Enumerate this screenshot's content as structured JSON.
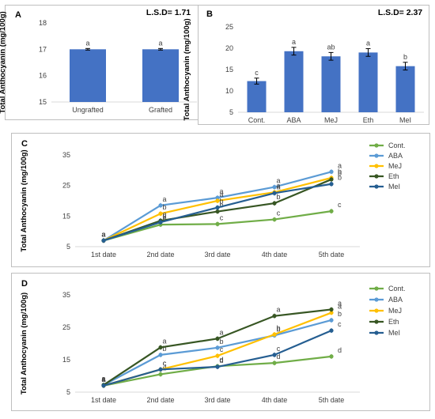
{
  "colors": {
    "bar": "#4472c4",
    "axis": "#d9d9d9",
    "text": "#404040",
    "series": {
      "Cont.": "#70ad47",
      "ABA": "#5b9bd5",
      "MeJ": "#ffc000",
      "Eth": "#375623",
      "MeI": "#255e91"
    }
  },
  "chart_data": [
    {
      "id": "A",
      "type": "bar",
      "panel_label": "A",
      "lsd": "L.S.D= 1.71",
      "ylabel": "Total Anthocyanin (mg/100g)",
      "categories": [
        "Ungrafted",
        "Grafted"
      ],
      "values": [
        17.0,
        17.0
      ],
      "errors": [
        0.03,
        0.03
      ],
      "letters": [
        "a",
        "a"
      ],
      "ylim": [
        15,
        18
      ],
      "yticks": [
        15,
        16,
        17,
        18
      ],
      "grid": false
    },
    {
      "id": "B",
      "type": "bar",
      "panel_label": "B",
      "lsd": "L.S.D= 2.37",
      "ylabel": "Total Anthocyanin (mg/100g)",
      "categories": [
        "Cont.",
        "ABA",
        "MeJ",
        "Eth",
        "MeI"
      ],
      "values": [
        12.3,
        19.3,
        18.1,
        19.0,
        15.8
      ],
      "errors": [
        0.7,
        0.9,
        0.9,
        0.9,
        0.9
      ],
      "letters": [
        "c",
        "a",
        "ab",
        "a",
        "b"
      ],
      "ylim": [
        5,
        25
      ],
      "yticks": [
        5,
        10,
        15,
        20,
        25
      ],
      "grid": false
    },
    {
      "id": "C",
      "type": "line",
      "panel_label": "C",
      "ylabel": "Total Anthocyanin (mg/100g)",
      "categories": [
        "1st date",
        "2nd date",
        "3rd date",
        "4th date",
        "5th date"
      ],
      "ylim": [
        5,
        35
      ],
      "yticks": [
        5,
        15,
        25,
        35
      ],
      "legend": "right",
      "grid": false,
      "series": [
        {
          "name": "Cont.",
          "values": [
            7.0,
            12.2,
            12.4,
            13.9,
            16.6
          ],
          "letters": [
            "a",
            "e",
            "c",
            "c",
            "c"
          ]
        },
        {
          "name": "ABA",
          "values": [
            7.0,
            18.5,
            21.0,
            24.5,
            29.5
          ],
          "letters": [
            "a",
            "a",
            "a",
            "a",
            "a"
          ]
        },
        {
          "name": "MeJ",
          "values": [
            7.0,
            15.8,
            20.0,
            22.8,
            27.5
          ],
          "letters": [
            "a",
            "b",
            "a",
            "a",
            "b"
          ]
        },
        {
          "name": "Eth",
          "values": [
            7.0,
            13.5,
            16.5,
            19.2,
            27.0
          ],
          "letters": [
            "a",
            "c",
            "b",
            "b",
            "b"
          ]
        },
        {
          "name": "MeI",
          "values": [
            7.0,
            13.0,
            17.8,
            22.5,
            25.5
          ],
          "letters": [
            "a",
            "d",
            "b",
            "a",
            "b"
          ]
        }
      ]
    },
    {
      "id": "D",
      "type": "line",
      "panel_label": "D",
      "ylabel": "Total Anthocyanin (mg/100g)",
      "categories": [
        "1st date",
        "2nd date",
        "3rd date",
        "4th date",
        "5th date"
      ],
      "ylim": [
        5,
        35
      ],
      "yticks": [
        5,
        15,
        25,
        35
      ],
      "legend": "right",
      "grid": false,
      "series": [
        {
          "name": "Cont.",
          "values": [
            7.0,
            10.5,
            13.0,
            14.0,
            16.0
          ],
          "letters": [
            "a",
            "d",
            "d",
            "d",
            "d"
          ]
        },
        {
          "name": "ABA",
          "values": [
            7.2,
            16.5,
            18.7,
            22.5,
            27.2
          ],
          "letters": [
            "a",
            "b",
            "b",
            "b",
            "b"
          ]
        },
        {
          "name": "MeJ",
          "values": [
            7.0,
            12.0,
            16.2,
            22.8,
            29.5
          ],
          "letters": [
            "a",
            "c",
            "c",
            "b",
            "a"
          ]
        },
        {
          "name": "Eth",
          "values": [
            7.2,
            18.8,
            21.5,
            28.5,
            30.5
          ],
          "letters": [
            "a",
            "a",
            "a",
            "a",
            "a"
          ]
        },
        {
          "name": "MeI",
          "values": [
            7.0,
            12.0,
            12.8,
            16.5,
            24.0
          ],
          "letters": [
            "a",
            "c",
            "d",
            "c",
            "c"
          ]
        }
      ]
    }
  ]
}
